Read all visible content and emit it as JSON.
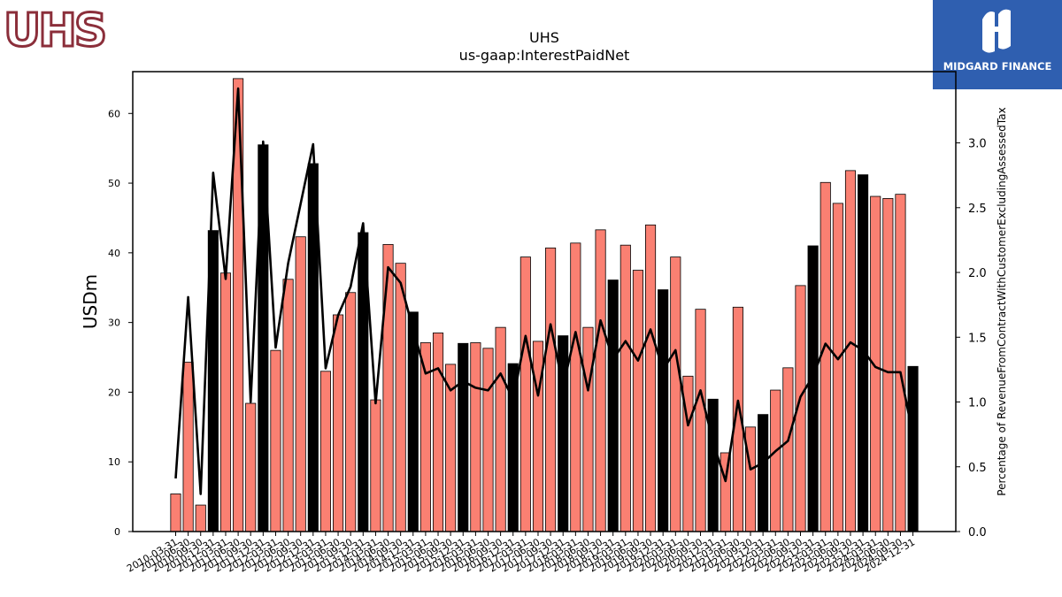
{
  "logos": {
    "left_text": "UHS",
    "right_text": "MIDGARD FINANCE"
  },
  "colors": {
    "bar_default": "#fa8072",
    "bar_highlight": "#000000",
    "line": "#000000",
    "logo_left": "#8b2e3a",
    "logo_right_bg": "#2f5fb0"
  },
  "chart_data": {
    "type": "bar",
    "title": "UHS",
    "subtitle": "us-gaap:InterestPaidNet",
    "ylabel": "USDm",
    "y2label": "Percentage of RevenueFromContractWithCustomerExcludingAssessedTax",
    "ylim": [
      0,
      66
    ],
    "y2lim": [
      0,
      3.55
    ],
    "yticks": [
      0,
      10,
      20,
      30,
      40,
      50,
      60
    ],
    "y2ticks": [
      "0.0",
      "0.5",
      "1.0",
      "1.5",
      "2.0",
      "2.5",
      "3.0"
    ],
    "categories": [
      "2010-03-31",
      "2010-06-30",
      "2010-09-30",
      "2010-12-31",
      "2011-03-31",
      "2011-06-30",
      "2011-09-30",
      "2011-12-31",
      "2012-03-31",
      "2012-06-30",
      "2012-09-30",
      "2012-12-31",
      "2013-03-31",
      "2013-06-30",
      "2013-09-30",
      "2013-12-31",
      "2014-03-31",
      "2014-06-30",
      "2014-09-30",
      "2014-12-31",
      "2015-03-31",
      "2015-06-30",
      "2015-09-30",
      "2015-12-31",
      "2016-03-31",
      "2016-06-30",
      "2016-09-30",
      "2016-12-31",
      "2017-03-31",
      "2017-06-30",
      "2017-09-30",
      "2017-12-31",
      "2018-03-31",
      "2018-06-30",
      "2018-09-30",
      "2018-12-31",
      "2019-03-31",
      "2019-06-30",
      "2019-09-30",
      "2019-12-31",
      "2020-03-31",
      "2020-06-30",
      "2020-09-30",
      "2020-12-31",
      "2021-03-31",
      "2021-06-30",
      "2021-09-30",
      "2021-12-31",
      "2022-03-31",
      "2022-06-30",
      "2022-09-30",
      "2022-12-31",
      "2023-03-31",
      "2023-06-30",
      "2023-09-30",
      "2023-12-31",
      "2024-03-31",
      "2024-06-30",
      "2024-09-30",
      "2024-12-31"
    ],
    "xtick_labels": [
      "2010-03-31",
      "2010-06-30",
      "2010-09-30",
      "2010-12-31",
      "2011-03-31",
      "2011-06-30",
      "2011-09-30",
      "2011-12-31",
      "2012-03-31",
      "2012-06-30",
      "2012-09-30",
      "2012-12-31",
      "2013-03-31",
      "2013-06-30",
      "2013-09-30",
      "2013-12-31",
      "2014-03-31",
      "2014-06-30",
      "2014-09-30",
      "2014-12-31",
      "2015-03-31",
      "2015-06-30",
      "2015-09-30",
      "2015-12-31",
      "2016-03-31",
      "2016-06-30",
      "2016-09-30",
      "2016-12-31",
      "2017-03-31",
      "2017-06-30",
      "2017-09-30",
      "2017-12-31",
      "2018-03-31",
      "2018-06-30",
      "2018-09-30",
      "2018-12-31",
      "2019-03-31",
      "2019-06-30",
      "2019-09-30",
      "2019-12-31",
      "2020-03-31",
      "2020-06-30",
      "2020-09-30",
      "2020-12-31",
      "2021-03-31",
      "2021-06-30",
      "2021-09-30",
      "2021-12-31",
      "2022-03-31",
      "2022-06-30",
      "2022-09-30",
      "2022-12-31",
      "2023-03-31",
      "2023-06-30",
      "2023-09-30",
      "2023-12-31",
      "2024-03-31",
      "2024-06-30",
      "2024-09-30",
      "2024-12-31"
    ],
    "series": [
      {
        "type": "bar",
        "axis": "left",
        "values": [
          5.4,
          24.3,
          3.8,
          43.2,
          37.1,
          65.0,
          18.4,
          55.5,
          26.0,
          36.2,
          42.3,
          52.8,
          23.0,
          31.1,
          34.3,
          42.9,
          18.9,
          41.2,
          38.5,
          31.5,
          27.1,
          28.5,
          24.0,
          27.0,
          27.1,
          26.3,
          29.3,
          24.1,
          39.4,
          27.3,
          40.7,
          28.1,
          41.4,
          29.3,
          43.3,
          36.1,
          41.1,
          37.5,
          44.0,
          34.7,
          39.4,
          22.3,
          31.9,
          19.0,
          11.3,
          32.2,
          15.0,
          16.8,
          20.3,
          23.5,
          35.3,
          41.0,
          50.1,
          47.1,
          51.8,
          51.2,
          48.1,
          47.8,
          48.4,
          23.7
        ],
        "highlight": [
          false,
          false,
          false,
          true,
          false,
          false,
          false,
          true,
          false,
          false,
          false,
          true,
          false,
          false,
          false,
          true,
          false,
          false,
          false,
          true,
          false,
          false,
          false,
          true,
          false,
          false,
          false,
          true,
          false,
          false,
          false,
          true,
          false,
          false,
          false,
          true,
          false,
          false,
          false,
          true,
          false,
          false,
          false,
          true,
          false,
          false,
          false,
          true,
          false,
          false,
          false,
          true,
          false,
          false,
          false,
          true,
          false,
          false,
          false,
          true
        ]
      },
      {
        "type": "line",
        "axis": "right",
        "values": [
          0.41,
          1.81,
          0.29,
          2.77,
          1.95,
          3.42,
          1.0,
          3.01,
          1.42,
          2.07,
          2.53,
          2.99,
          1.26,
          1.67,
          1.89,
          2.38,
          0.99,
          2.04,
          1.92,
          1.56,
          1.22,
          1.26,
          1.09,
          1.16,
          1.11,
          1.09,
          1.22,
          1.02,
          1.51,
          1.05,
          1.6,
          1.12,
          1.54,
          1.09,
          1.63,
          1.33,
          1.47,
          1.32,
          1.56,
          1.25,
          1.4,
          0.82,
          1.09,
          0.69,
          0.39,
          1.01,
          0.48,
          0.53,
          0.62,
          0.7,
          1.04,
          1.2,
          1.45,
          1.33,
          1.46,
          1.4,
          1.27,
          1.23,
          1.23,
          0.74
        ]
      }
    ]
  }
}
